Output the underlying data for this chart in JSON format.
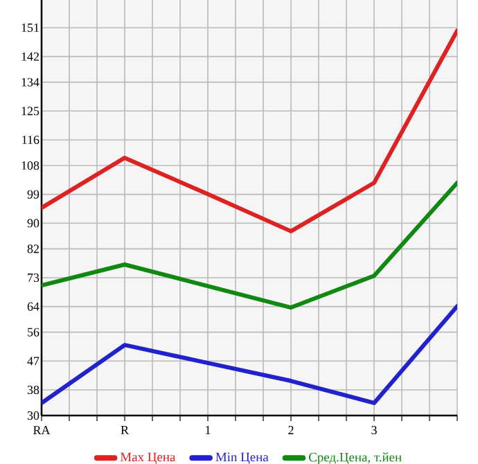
{
  "chart_data": {
    "type": "line",
    "categories": [
      "RA",
      "R",
      "1",
      "2",
      "3",
      null
    ],
    "series": [
      {
        "name": "Max Цена",
        "color": "#dd2222",
        "values": [
          94.8,
          110.4,
          99.1,
          87.5,
          102.6,
          150.1
        ]
      },
      {
        "name": "Min Цена",
        "color": "#2222cc",
        "values": [
          33.9,
          52.0,
          46.4,
          40.8,
          33.9,
          64.1
        ]
      },
      {
        "name": "Сред.Цена, т.йен",
        "color": "#118811",
        "values": [
          70.6,
          77.1,
          70.4,
          63.7,
          73.6,
          102.6
        ]
      }
    ],
    "ylim": [
      30,
      159.64
    ],
    "yticks": [
      30,
      38,
      47,
      56,
      64,
      73,
      82,
      90,
      99,
      108,
      116,
      125,
      134,
      142,
      151
    ],
    "grid": true,
    "legend": "bottom",
    "marker": "none",
    "line_style": "solid"
  }
}
